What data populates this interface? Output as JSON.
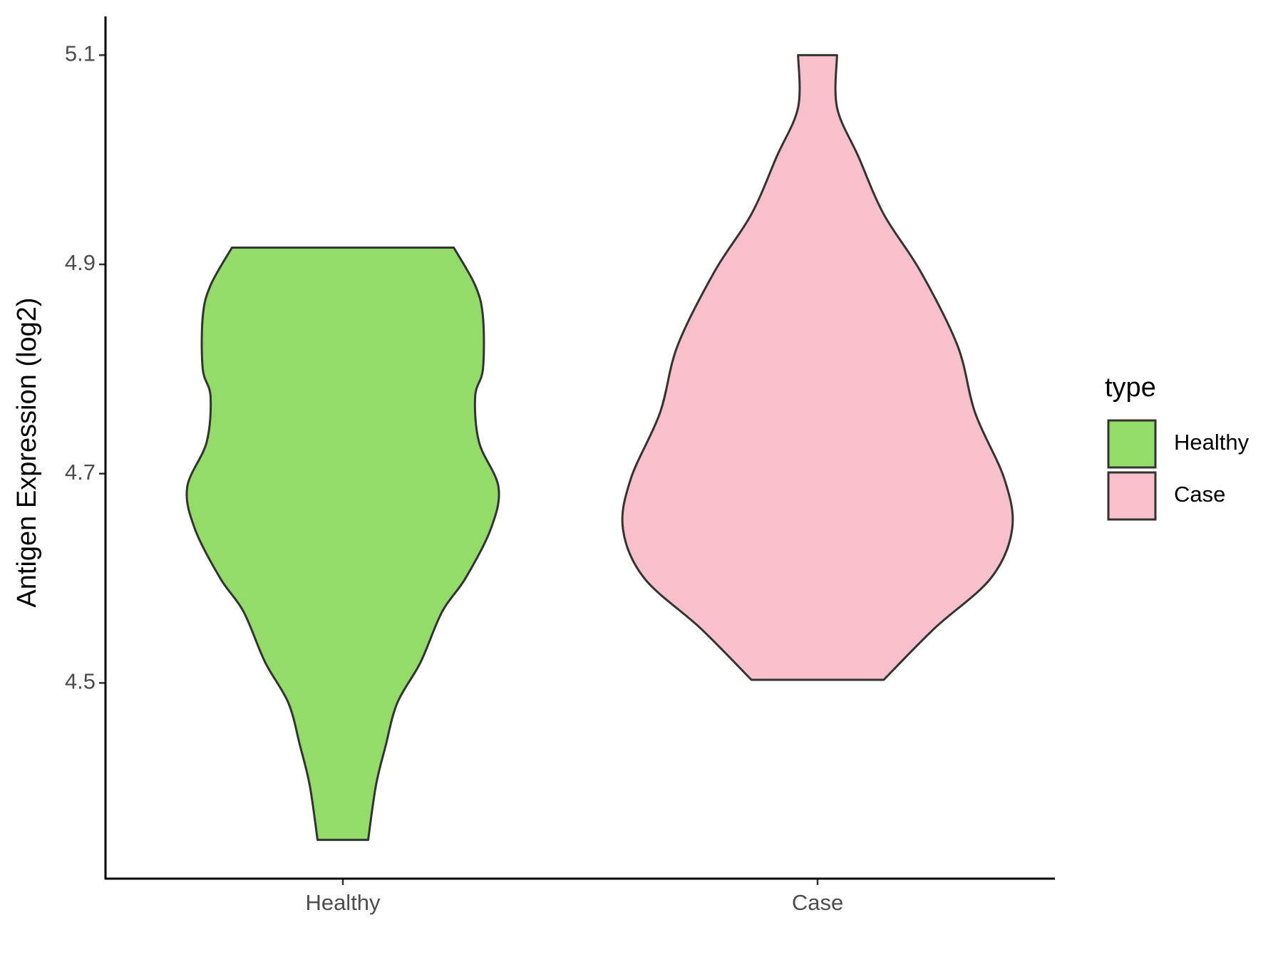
{
  "chart_data": {
    "type": "violin",
    "ylabel": "Antigen Expression (log2)",
    "legend_title": "type",
    "categories": [
      "Healthy",
      "Case"
    ],
    "series": [
      {
        "name": "Healthy",
        "color": "#93dc6a",
        "y": [
          4.916,
          4.88,
          4.85,
          4.8,
          4.774,
          4.73,
          4.687,
          4.647,
          4.6,
          4.568,
          4.52,
          4.481,
          4.44,
          4.402,
          4.35
        ],
        "width": [
          0.57,
          0.68,
          0.72,
          0.72,
          0.68,
          0.7,
          0.8,
          0.76,
          0.63,
          0.51,
          0.4,
          0.28,
          0.22,
          0.17,
          0.13
        ]
      },
      {
        "name": "Case",
        "color": "#f7c0cb",
        "y": [
          5.1,
          5.05,
          5.003,
          4.948,
          4.893,
          4.822,
          4.758,
          4.695,
          4.647,
          4.6,
          4.552,
          4.503
        ],
        "width": [
          0.1,
          0.1,
          0.21,
          0.34,
          0.53,
          0.72,
          0.81,
          0.96,
          1.0,
          0.89,
          0.6,
          0.34
        ]
      }
    ],
    "ylim": [
      4.313,
      5.137
    ],
    "yticks": [
      4.5,
      4.7,
      4.9,
      5.1
    ],
    "legend_position": "right"
  }
}
